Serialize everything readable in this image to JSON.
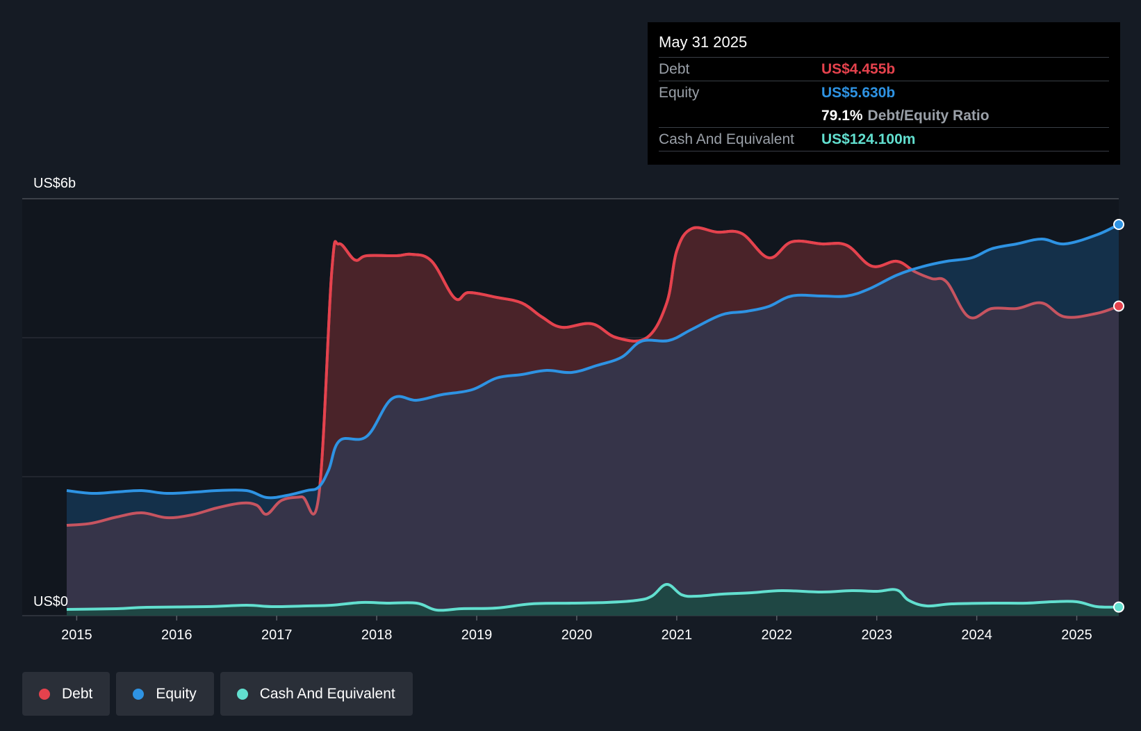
{
  "tooltip": {
    "date": "May 31 2025",
    "debt_label": "Debt",
    "debt_value": "US$4.455b",
    "equity_label": "Equity",
    "equity_value": "US$5.630b",
    "ratio_value": "79.1%",
    "ratio_label": "Debt/Equity Ratio",
    "cash_label": "Cash And Equivalent",
    "cash_value": "US$124.100m"
  },
  "legend": {
    "debt": "Debt",
    "equity": "Equity",
    "cash": "Cash And Equivalent"
  },
  "colors": {
    "debt": "#e5424d",
    "debt_faded": "#c65460",
    "equity": "#2e93e3",
    "cash": "#62dfcf",
    "debt_fill": "#4a2329",
    "equity_fill": "#14304a",
    "common_fill": "#363449",
    "cash_fill": "#1f4744"
  },
  "chart_data": {
    "type": "area",
    "title": "",
    "xlabel": "",
    "ylabel": "",
    "ylim": [
      0,
      6
    ],
    "y_unit": "US$ billions",
    "y_axis_labels": [
      "US$6b",
      "US$0"
    ],
    "xlim": [
      2014.9,
      2025.42
    ],
    "x_tick_labels": [
      "2015",
      "2016",
      "2017",
      "2018",
      "2019",
      "2020",
      "2021",
      "2022",
      "2023",
      "2024",
      "2025"
    ],
    "x_ticks": [
      2015,
      2016,
      2017,
      2018,
      2019,
      2020,
      2021,
      2022,
      2023,
      2024,
      2025
    ],
    "gridlines_y": [
      0,
      2,
      4,
      6
    ],
    "series": [
      {
        "name": "Debt",
        "points": [
          [
            2014.9,
            1.3
          ],
          [
            2015.15,
            1.33
          ],
          [
            2015.4,
            1.42
          ],
          [
            2015.65,
            1.48
          ],
          [
            2015.9,
            1.41
          ],
          [
            2016.15,
            1.45
          ],
          [
            2016.4,
            1.55
          ],
          [
            2016.65,
            1.62
          ],
          [
            2016.8,
            1.59
          ],
          [
            2016.9,
            1.46
          ],
          [
            2017.05,
            1.66
          ],
          [
            2017.25,
            1.71
          ],
          [
            2017.42,
            1.72
          ],
          [
            2017.55,
            4.95
          ],
          [
            2017.62,
            5.35
          ],
          [
            2017.78,
            5.12
          ],
          [
            2017.9,
            5.18
          ],
          [
            2018.2,
            5.18
          ],
          [
            2018.35,
            5.2
          ],
          [
            2018.55,
            5.1
          ],
          [
            2018.78,
            4.57
          ],
          [
            2018.92,
            4.65
          ],
          [
            2019.2,
            4.58
          ],
          [
            2019.45,
            4.5
          ],
          [
            2019.65,
            4.3
          ],
          [
            2019.85,
            4.15
          ],
          [
            2020.15,
            4.2
          ],
          [
            2020.4,
            4.0
          ],
          [
            2020.7,
            4.0
          ],
          [
            2020.9,
            4.5
          ],
          [
            2021.0,
            5.25
          ],
          [
            2021.15,
            5.57
          ],
          [
            2021.4,
            5.52
          ],
          [
            2021.65,
            5.5
          ],
          [
            2021.92,
            5.15
          ],
          [
            2022.15,
            5.38
          ],
          [
            2022.45,
            5.35
          ],
          [
            2022.7,
            5.33
          ],
          [
            2022.95,
            5.03
          ],
          [
            2023.2,
            5.1
          ],
          [
            2023.38,
            4.95
          ],
          [
            2023.55,
            4.85
          ],
          [
            2023.7,
            4.8
          ],
          [
            2023.92,
            4.3
          ],
          [
            2024.15,
            4.42
          ],
          [
            2024.4,
            4.42
          ],
          [
            2024.65,
            4.5
          ],
          [
            2024.88,
            4.3
          ],
          [
            2025.2,
            4.35
          ],
          [
            2025.42,
            4.455
          ]
        ]
      },
      {
        "name": "Equity",
        "points": [
          [
            2014.9,
            1.8
          ],
          [
            2015.15,
            1.76
          ],
          [
            2015.4,
            1.78
          ],
          [
            2015.65,
            1.8
          ],
          [
            2015.9,
            1.76
          ],
          [
            2016.2,
            1.78
          ],
          [
            2016.4,
            1.8
          ],
          [
            2016.7,
            1.8
          ],
          [
            2016.9,
            1.7
          ],
          [
            2017.1,
            1.73
          ],
          [
            2017.3,
            1.8
          ],
          [
            2017.42,
            1.85
          ],
          [
            2017.52,
            2.1
          ],
          [
            2017.63,
            2.52
          ],
          [
            2017.9,
            2.58
          ],
          [
            2018.15,
            3.12
          ],
          [
            2018.4,
            3.1
          ],
          [
            2018.65,
            3.18
          ],
          [
            2018.95,
            3.25
          ],
          [
            2019.2,
            3.42
          ],
          [
            2019.45,
            3.47
          ],
          [
            2019.7,
            3.53
          ],
          [
            2019.95,
            3.5
          ],
          [
            2020.2,
            3.6
          ],
          [
            2020.45,
            3.72
          ],
          [
            2020.65,
            3.95
          ],
          [
            2020.92,
            3.96
          ],
          [
            2021.15,
            4.12
          ],
          [
            2021.45,
            4.33
          ],
          [
            2021.7,
            4.38
          ],
          [
            2021.92,
            4.45
          ],
          [
            2022.15,
            4.6
          ],
          [
            2022.45,
            4.6
          ],
          [
            2022.7,
            4.6
          ],
          [
            2022.92,
            4.7
          ],
          [
            2023.2,
            4.9
          ],
          [
            2023.45,
            5.02
          ],
          [
            2023.7,
            5.1
          ],
          [
            2023.95,
            5.15
          ],
          [
            2024.15,
            5.28
          ],
          [
            2024.4,
            5.35
          ],
          [
            2024.65,
            5.42
          ],
          [
            2024.88,
            5.35
          ],
          [
            2025.2,
            5.48
          ],
          [
            2025.42,
            5.63
          ]
        ]
      },
      {
        "name": "Cash And Equivalent",
        "points": [
          [
            2014.9,
            0.09
          ],
          [
            2015.4,
            0.1
          ],
          [
            2015.7,
            0.12
          ],
          [
            2016.3,
            0.13
          ],
          [
            2016.7,
            0.15
          ],
          [
            2016.95,
            0.13
          ],
          [
            2017.3,
            0.14
          ],
          [
            2017.55,
            0.15
          ],
          [
            2017.85,
            0.19
          ],
          [
            2018.1,
            0.18
          ],
          [
            2018.4,
            0.18
          ],
          [
            2018.6,
            0.08
          ],
          [
            2018.85,
            0.1
          ],
          [
            2019.2,
            0.11
          ],
          [
            2019.55,
            0.17
          ],
          [
            2019.95,
            0.18
          ],
          [
            2020.3,
            0.19
          ],
          [
            2020.6,
            0.22
          ],
          [
            2020.75,
            0.28
          ],
          [
            2020.9,
            0.45
          ],
          [
            2021.05,
            0.3
          ],
          [
            2021.2,
            0.28
          ],
          [
            2021.45,
            0.31
          ],
          [
            2021.75,
            0.33
          ],
          [
            2022.05,
            0.36
          ],
          [
            2022.45,
            0.34
          ],
          [
            2022.75,
            0.36
          ],
          [
            2023.0,
            0.35
          ],
          [
            2023.2,
            0.37
          ],
          [
            2023.32,
            0.22
          ],
          [
            2023.5,
            0.14
          ],
          [
            2023.75,
            0.17
          ],
          [
            2024.15,
            0.18
          ],
          [
            2024.5,
            0.18
          ],
          [
            2024.75,
            0.2
          ],
          [
            2025.0,
            0.2
          ],
          [
            2025.2,
            0.13
          ],
          [
            2025.42,
            0.124
          ]
        ]
      }
    ],
    "markers": [
      "Debt",
      "Equity",
      "Cash And Equivalent"
    ]
  }
}
